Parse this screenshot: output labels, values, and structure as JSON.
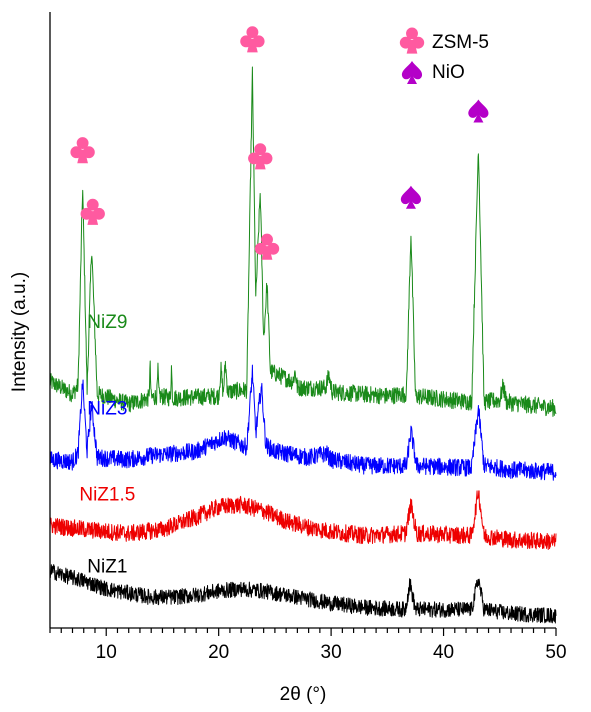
{
  "chart_data": {
    "type": "line",
    "title": "",
    "xlabel": "2θ (°)",
    "ylabel": "Intensity (a.u.)",
    "xlim": [
      5,
      50
    ],
    "x_ticks": [
      10,
      20,
      30,
      40,
      50
    ],
    "x_minor_step": 1,
    "y_ticks_shown": false,
    "grid": false,
    "legend_position": "top-right",
    "colors": {
      "ZSM-5": "#ff5aa0",
      "NiO": "#b400c8"
    },
    "legend": [
      {
        "label": "ZSM-5",
        "symbol": "club",
        "color": "#ff5aa0"
      },
      {
        "label": "NiO",
        "symbol": "spade",
        "color": "#b400c8"
      }
    ],
    "series": [
      {
        "name": "NiZ9",
        "color": "#1a8a1a",
        "baseline": 10.8,
        "points": [
          [
            5,
            12.0
          ],
          [
            7,
            11.4
          ],
          [
            7.5,
            11.8
          ],
          [
            7.9,
            21.5
          ],
          [
            8.3,
            11.6
          ],
          [
            8.7,
            18.6
          ],
          [
            9.2,
            11.4
          ],
          [
            12,
            10.9
          ],
          [
            13.8,
            11.2
          ],
          [
            13.9,
            12.8
          ],
          [
            14.0,
            11.2
          ],
          [
            14.5,
            11.3
          ],
          [
            14.6,
            12.5
          ],
          [
            14.7,
            11.3
          ],
          [
            15.7,
            11.2
          ],
          [
            15.8,
            12.7
          ],
          [
            15.9,
            11.2
          ],
          [
            20.0,
            11.3
          ],
          [
            20.2,
            12.6
          ],
          [
            20.4,
            11.4
          ],
          [
            20.6,
            12.9
          ],
          [
            20.8,
            11.5
          ],
          [
            22.5,
            11.6
          ],
          [
            23.0,
            27.0
          ],
          [
            23.3,
            16.0
          ],
          [
            23.7,
            21.3
          ],
          [
            24.0,
            14.0
          ],
          [
            24.3,
            16.8
          ],
          [
            24.6,
            12.5
          ],
          [
            26.6,
            12.0
          ],
          [
            26.8,
            12.5
          ],
          [
            27.0,
            11.7
          ],
          [
            29.5,
            11.7
          ],
          [
            29.8,
            12.3
          ],
          [
            30.1,
            11.5
          ],
          [
            35,
            11.3
          ],
          [
            36.7,
            11.4
          ],
          [
            37.1,
            19.3
          ],
          [
            37.5,
            11.3
          ],
          [
            42.5,
            11.0
          ],
          [
            43.1,
            23.5
          ],
          [
            43.6,
            11.0
          ],
          [
            45,
            11.1
          ],
          [
            45.3,
            11.8
          ],
          [
            45.6,
            11.0
          ],
          [
            50,
            10.7
          ]
        ]
      },
      {
        "name": "NiZ3",
        "color": "#0000ff",
        "baseline": 7.8,
        "points": [
          [
            5,
            8.2
          ],
          [
            7,
            8.1
          ],
          [
            7.5,
            8.5
          ],
          [
            7.9,
            12.0
          ],
          [
            8.3,
            8.6
          ],
          [
            8.7,
            10.9
          ],
          [
            9.2,
            8.3
          ],
          [
            12,
            8.2
          ],
          [
            14,
            8.4
          ],
          [
            18,
            8.6
          ],
          [
            20.5,
            9.3
          ],
          [
            22.5,
            8.8
          ],
          [
            23.0,
            12.5
          ],
          [
            23.3,
            9.5
          ],
          [
            23.8,
            11.8
          ],
          [
            24.2,
            8.9
          ],
          [
            25,
            8.6
          ],
          [
            28,
            8.3
          ],
          [
            29.6,
            8.5
          ],
          [
            30,
            8.2
          ],
          [
            33,
            7.9
          ],
          [
            36.7,
            7.9
          ],
          [
            37.1,
            9.6
          ],
          [
            37.6,
            7.9
          ],
          [
            42.5,
            7.8
          ],
          [
            43.1,
            10.7
          ],
          [
            43.6,
            7.9
          ],
          [
            46,
            7.7
          ],
          [
            50,
            7.6
          ]
        ]
      },
      {
        "name": "NiZ1.5",
        "color": "#ee0000",
        "baseline": 4.5,
        "points": [
          [
            5,
            5.0
          ],
          [
            8,
            4.8
          ],
          [
            12,
            4.6
          ],
          [
            15,
            4.8
          ],
          [
            18,
            5.4
          ],
          [
            20,
            5.9
          ],
          [
            22,
            6.0
          ],
          [
            24,
            5.7
          ],
          [
            26,
            5.2
          ],
          [
            28,
            4.9
          ],
          [
            30,
            4.7
          ],
          [
            33,
            4.5
          ],
          [
            36.6,
            4.6
          ],
          [
            37.1,
            6.0
          ],
          [
            37.6,
            4.6
          ],
          [
            42.5,
            4.5
          ],
          [
            43.1,
            6.7
          ],
          [
            43.6,
            4.5
          ],
          [
            46,
            4.3
          ],
          [
            50,
            4.2
          ]
        ]
      },
      {
        "name": "NiZ1",
        "color": "#000000",
        "baseline": 1.0,
        "points": [
          [
            5,
            2.8
          ],
          [
            6,
            2.6
          ],
          [
            8,
            2.3
          ],
          [
            10,
            1.9
          ],
          [
            12,
            1.7
          ],
          [
            14,
            1.5
          ],
          [
            16,
            1.5
          ],
          [
            18,
            1.6
          ],
          [
            20,
            1.8
          ],
          [
            22,
            1.9
          ],
          [
            24,
            1.8
          ],
          [
            26,
            1.6
          ],
          [
            28,
            1.4
          ],
          [
            30,
            1.2
          ],
          [
            33,
            1.0
          ],
          [
            36.6,
            0.9
          ],
          [
            37.0,
            2.2
          ],
          [
            37.5,
            0.9
          ],
          [
            42.5,
            0.9
          ],
          [
            43.1,
            2.4
          ],
          [
            43.6,
            0.9
          ],
          [
            46,
            0.7
          ],
          [
            50,
            0.6
          ]
        ]
      }
    ],
    "annotations": [
      {
        "symbol": "club",
        "color": "#ff5aa0",
        "x": 7.9,
        "y": 23.3
      },
      {
        "symbol": "club",
        "color": "#ff5aa0",
        "x": 8.8,
        "y": 20.3
      },
      {
        "symbol": "club",
        "color": "#ff5aa0",
        "x": 23.0,
        "y": 28.7
      },
      {
        "symbol": "club",
        "color": "#ff5aa0",
        "x": 23.7,
        "y": 23.0
      },
      {
        "symbol": "club",
        "color": "#ff5aa0",
        "x": 24.3,
        "y": 18.6
      },
      {
        "symbol": "spade",
        "color": "#b400c8",
        "x": 37.1,
        "y": 21.0
      },
      {
        "symbol": "spade",
        "color": "#b400c8",
        "x": 43.1,
        "y": 25.2
      }
    ]
  }
}
